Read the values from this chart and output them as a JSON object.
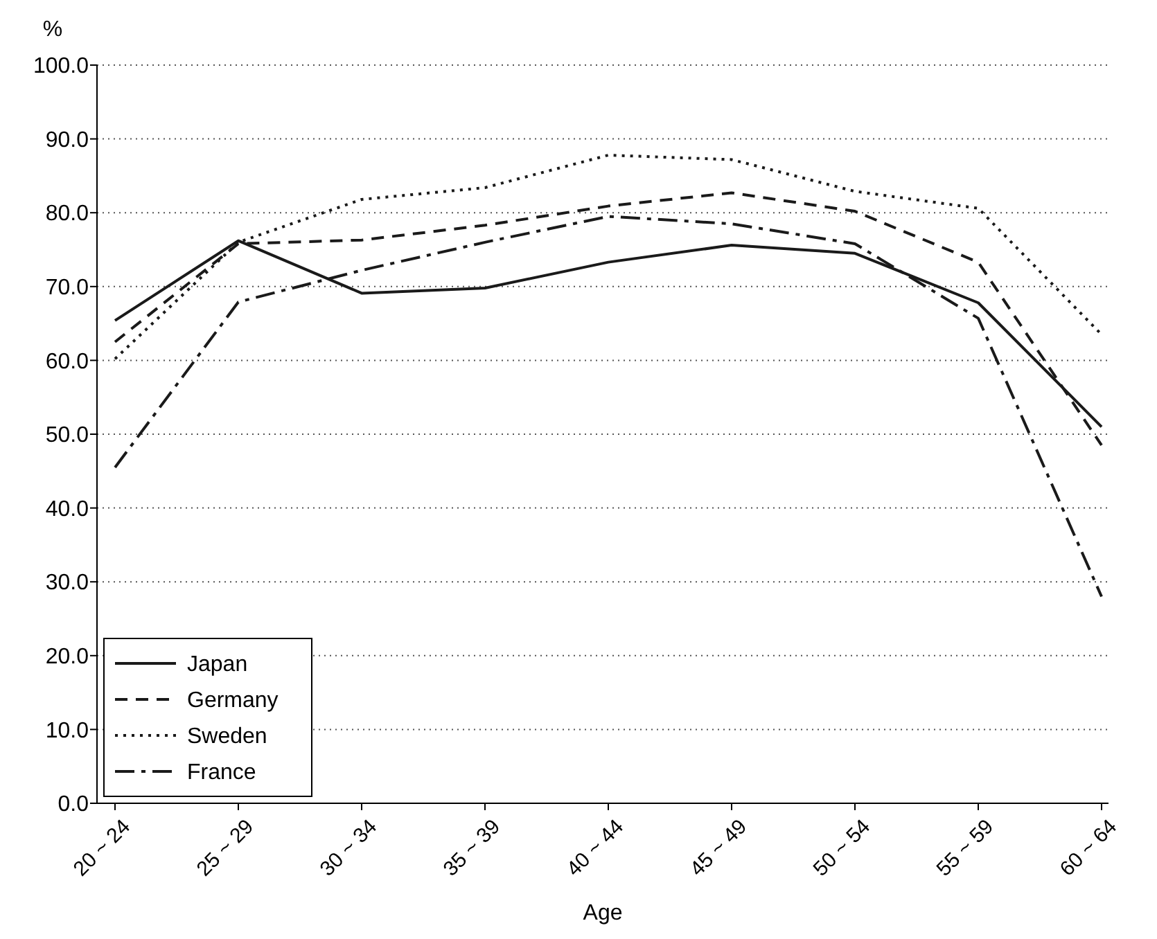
{
  "chart_data": {
    "type": "line",
    "xlabel": "Age",
    "ylabel": "%",
    "categories": [
      "20 ~ 24",
      "25 ~ 29",
      "30 ~ 34",
      "35 ~ 39",
      "40 ~ 44",
      "45 ~ 49",
      "50 ~ 54",
      "55 ~ 59",
      "60 ~ 64"
    ],
    "series": [
      {
        "name": "Japan",
        "color": "#1a1a1a",
        "line_style": "solid",
        "values": [
          65.4,
          76.2,
          69.1,
          69.8,
          73.3,
          75.6,
          74.5,
          67.8,
          51.0
        ]
      },
      {
        "name": "Germany",
        "color": "#1a1a1a",
        "line_style": "dashed",
        "values": [
          62.5,
          75.8,
          76.3,
          78.3,
          80.9,
          82.7,
          80.2,
          73.3,
          48.5
        ]
      },
      {
        "name": "Sweden",
        "color": "#1a1a1a",
        "line_style": "dotted",
        "values": [
          60.2,
          76.0,
          81.8,
          83.4,
          87.8,
          87.2,
          82.9,
          80.6,
          63.5
        ]
      },
      {
        "name": "France",
        "color": "#1a1a1a",
        "line_style": "dashdot",
        "values": [
          45.5,
          67.9,
          72.2,
          76.0,
          79.5,
          78.5,
          75.8,
          65.7,
          28.0
        ]
      }
    ],
    "ylim": [
      0,
      100
    ],
    "yticks": [
      {
        "value": 0,
        "label": "0.0"
      },
      {
        "value": 10,
        "label": "10.0"
      },
      {
        "value": 20,
        "label": "20.0"
      },
      {
        "value": 30,
        "label": "30.0"
      },
      {
        "value": 40,
        "label": "40.0"
      },
      {
        "value": 50,
        "label": "50.0"
      },
      {
        "value": 60,
        "label": "60.0"
      },
      {
        "value": 70,
        "label": "70.0"
      },
      {
        "value": 80,
        "label": "80.0"
      },
      {
        "value": 90,
        "label": "90.0"
      },
      {
        "value": 100,
        "label": "100.0"
      }
    ],
    "grid": "y",
    "legend": "bottom left",
    "marker": "none"
  }
}
